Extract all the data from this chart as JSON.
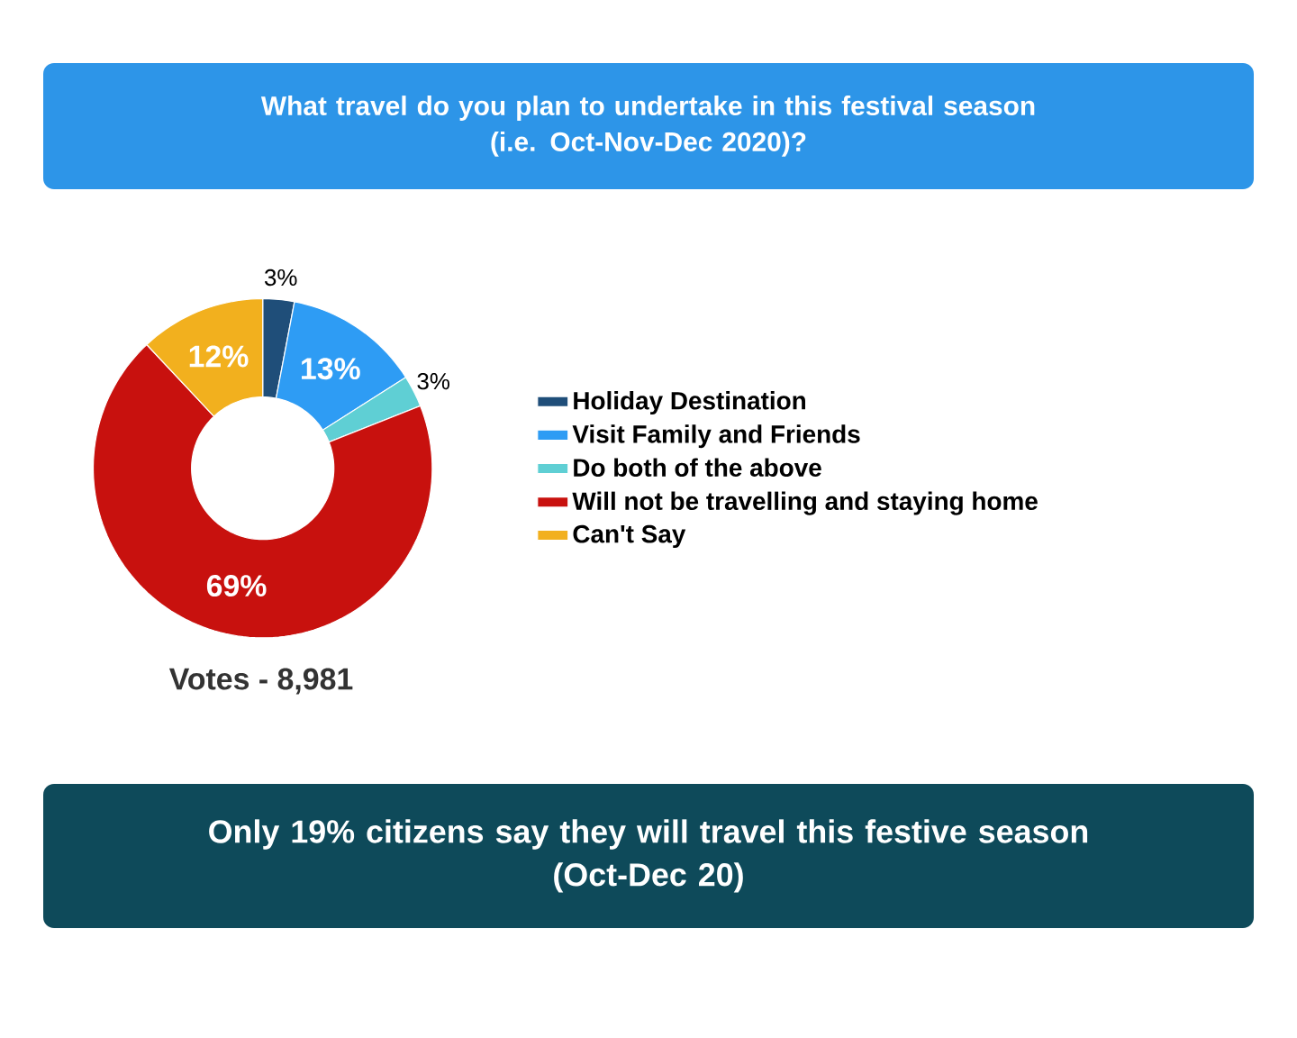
{
  "chart_data": {
    "type": "donut",
    "title": "What travel do you plan to undertake in this festival season\n(i.e. Oct-Nov-Dec 2020)?",
    "categories": [
      "Holiday Destination",
      "Visit Family and Friends",
      "Do both of the above",
      "Will not be travelling and staying home",
      "Can't Say"
    ],
    "values": [
      3,
      13,
      3,
      69,
      12
    ],
    "colors": [
      "#1f4e79",
      "#2e9cf4",
      "#5fcfd4",
      "#c8110e",
      "#f2b01e"
    ],
    "value_labels": [
      "3%",
      "13%",
      "3%",
      "69%",
      "12%"
    ],
    "legend": "right",
    "annotations": [
      "Votes - 8,981",
      "Only 19% citizens say they will travel this festive season\n(Oct-Dec 20)"
    ]
  }
}
